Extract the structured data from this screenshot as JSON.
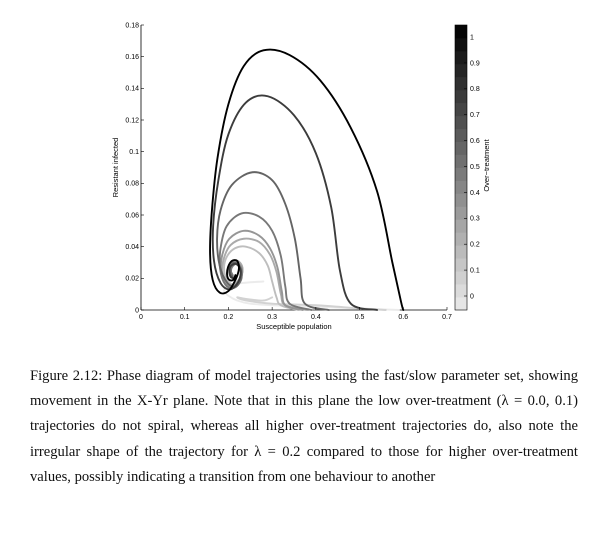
{
  "caption": "Figure 2.12: Phase diagram of model trajectories using the fast/slow parameter set, showing movement in the X-Yr plane. Note that in this plane the low over-treatment (λ = 0.0, 0.1) trajectories do not spiral, whereas all higher over-treatment trajectories do, also note the irregular shape of the trajectory for λ = 0.2 compared to those for higher over-treatment values, possibly indicating a transition from one behaviour to another",
  "chart_data": {
    "type": "line",
    "title": "",
    "xlabel": "Susceptible population",
    "ylabel": "Resistant infected",
    "xlim": [
      0,
      0.7
    ],
    "ylim": [
      0,
      0.18
    ],
    "xticks": [
      "0",
      "0.1",
      "0.2",
      "0.3",
      "0.4",
      "0.5",
      "0.6",
      "0.7"
    ],
    "yticks": [
      "0",
      "0.02",
      "0.04",
      "0.06",
      "0.08",
      "0.1",
      "0.12",
      "0.14",
      "0.16",
      "0.18"
    ],
    "grid": false,
    "colorbar": {
      "label": "Over−treatment",
      "range": [
        0,
        1
      ],
      "ticks": [
        "0",
        "0.1",
        "0.2",
        "0.3",
        "0.4",
        "0.5",
        "0.6",
        "0.7",
        "0.8",
        "0.9",
        "1"
      ],
      "color_low": "#ebebeb",
      "color_high": "#000000"
    },
    "series": [
      {
        "lambda": 0.0,
        "color": "#ebebeb",
        "x": [
          0.59,
          0.5,
          0.4,
          0.3,
          0.25,
          0.22,
          0.2,
          0.19,
          0.2,
          0.23,
          0.28
        ],
        "y": [
          0.0,
          0.001,
          0.002,
          0.003,
          0.004,
          0.006,
          0.009,
          0.012,
          0.015,
          0.017,
          0.018
        ]
      },
      {
        "lambda": 0.1,
        "color": "#d2d2d2",
        "x": [
          0.56,
          0.5,
          0.4,
          0.3,
          0.24,
          0.22,
          0.24,
          0.28,
          0.3
        ],
        "y": [
          0.0,
          0.001,
          0.003,
          0.004,
          0.006,
          0.008,
          0.007,
          0.006,
          0.008
        ]
      },
      {
        "lambda": 0.2,
        "color": "#bebebe",
        "x": [
          0.36,
          0.32,
          0.31,
          0.3,
          0.29,
          0.27,
          0.24,
          0.215,
          0.197,
          0.19,
          0.195,
          0.21,
          0.225,
          0.232,
          0.228,
          0.215,
          0.205,
          0.202,
          0.206
        ],
        "y": [
          0.0,
          0.003,
          0.008,
          0.018,
          0.028,
          0.036,
          0.04,
          0.039,
          0.034,
          0.027,
          0.02,
          0.016,
          0.018,
          0.024,
          0.029,
          0.031,
          0.029,
          0.025,
          0.023
        ]
      },
      {
        "lambda": 0.3,
        "color": "#aaaaaa",
        "x": [
          0.38,
          0.33,
          0.32,
          0.31,
          0.295,
          0.27,
          0.235,
          0.205,
          0.19,
          0.186,
          0.195,
          0.212,
          0.228,
          0.232,
          0.222,
          0.21,
          0.205,
          0.207
        ],
        "y": [
          0.0,
          0.003,
          0.01,
          0.024,
          0.035,
          0.043,
          0.045,
          0.041,
          0.033,
          0.024,
          0.017,
          0.016,
          0.021,
          0.027,
          0.031,
          0.03,
          0.026,
          0.023
        ]
      },
      {
        "lambda": 0.4,
        "color": "#969696",
        "x": [
          0.37,
          0.33,
          0.322,
          0.312,
          0.295,
          0.27,
          0.235,
          0.202,
          0.186,
          0.183,
          0.194,
          0.212,
          0.228,
          0.231,
          0.22,
          0.209,
          0.205,
          0.208
        ],
        "y": [
          0.0,
          0.003,
          0.012,
          0.027,
          0.039,
          0.047,
          0.05,
          0.045,
          0.035,
          0.025,
          0.017,
          0.015,
          0.02,
          0.026,
          0.03,
          0.029,
          0.025,
          0.023
        ]
      },
      {
        "lambda": 0.5,
        "color": "#787878",
        "x": [
          0.39,
          0.34,
          0.33,
          0.32,
          0.3,
          0.27,
          0.23,
          0.196,
          0.182,
          0.181,
          0.193,
          0.213,
          0.229,
          0.229,
          0.218,
          0.208,
          0.206,
          0.21
        ],
        "y": [
          0.0,
          0.004,
          0.015,
          0.034,
          0.05,
          0.059,
          0.061,
          0.053,
          0.039,
          0.026,
          0.016,
          0.014,
          0.019,
          0.026,
          0.029,
          0.027,
          0.024,
          0.022
        ]
      },
      {
        "lambda": 0.6,
        "color": "#646464",
        "x": [
          0.43,
          0.375,
          0.365,
          0.352,
          0.33,
          0.3,
          0.255,
          0.208,
          0.182,
          0.174,
          0.18,
          0.198,
          0.218,
          0.229,
          0.225,
          0.212,
          0.204,
          0.204,
          0.21
        ],
        "y": [
          0.0,
          0.004,
          0.02,
          0.045,
          0.067,
          0.082,
          0.087,
          0.079,
          0.063,
          0.045,
          0.028,
          0.017,
          0.015,
          0.021,
          0.028,
          0.03,
          0.027,
          0.023,
          0.021
        ]
      },
      {
        "lambda": 0.8,
        "color": "#3c3c3c",
        "x": [
          0.54,
          0.48,
          0.455,
          0.435,
          0.4,
          0.35,
          0.29,
          0.24,
          0.2,
          0.177,
          0.165,
          0.167,
          0.182,
          0.204,
          0.223,
          0.228,
          0.218,
          0.206,
          0.202,
          0.205,
          0.212
        ],
        "y": [
          0.0,
          0.004,
          0.025,
          0.065,
          0.099,
          0.123,
          0.135,
          0.131,
          0.111,
          0.082,
          0.053,
          0.031,
          0.017,
          0.013,
          0.018,
          0.025,
          0.029,
          0.028,
          0.025,
          0.021,
          0.02
        ]
      },
      {
        "lambda": 1.0,
        "color": "#000000",
        "x": [
          0.6,
          0.595,
          0.575,
          0.54,
          0.48,
          0.41,
          0.34,
          0.28,
          0.235,
          0.2,
          0.175,
          0.162,
          0.158,
          0.164,
          0.18,
          0.2,
          0.216,
          0.224,
          0.22,
          0.208,
          0.199,
          0.197,
          0.202,
          0.211,
          0.216
        ],
        "y": [
          0.0,
          0.005,
          0.03,
          0.075,
          0.115,
          0.145,
          0.161,
          0.164,
          0.154,
          0.13,
          0.096,
          0.062,
          0.036,
          0.019,
          0.011,
          0.012,
          0.019,
          0.026,
          0.031,
          0.031,
          0.027,
          0.022,
          0.019,
          0.019,
          0.022
        ]
      }
    ]
  }
}
